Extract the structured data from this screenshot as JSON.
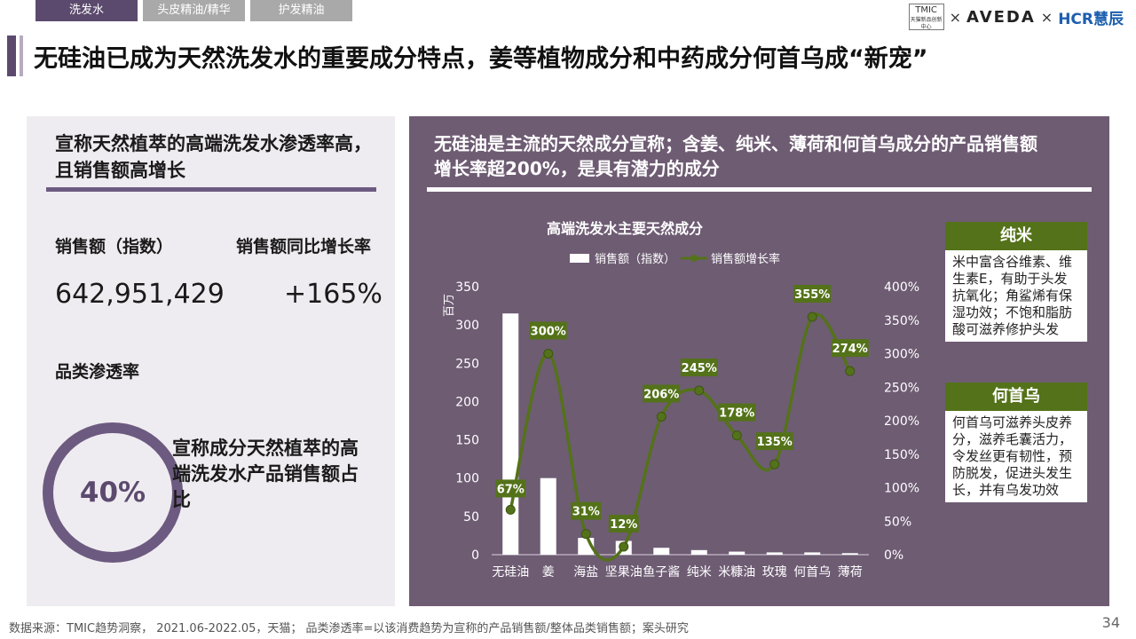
{
  "tabs": [
    {
      "label": "洗发水"
    },
    {
      "label": "头皮精油/精华"
    },
    {
      "label": "护发精油"
    }
  ],
  "logos": {
    "tmic": "TMIC",
    "tmic_sub": "天猫新品创新中心",
    "sep": "×",
    "aveda": "AVEDA",
    "hcr": "HCR慧辰"
  },
  "title": "无硅油已成为天然洗发水的重要成分特点，姜等植物成分和中药成分何首乌成“新宠”",
  "left": {
    "heading": "宣称天然植萃的高端洗发水渗透率高，且销售额高增长",
    "sales_label": "销售额（指数）",
    "growth_label": "销售额同比增长率",
    "sales_value": "642,951,429",
    "growth_value": "+165%",
    "penetration_label": "品类渗透率",
    "penetration_value": "40%",
    "penetration_desc": "宣称成分天然植萃的高端洗发水产品销售额占比"
  },
  "right": {
    "heading": "无硅油是主流的天然成分宣称；含姜、纯米、薄荷和何首乌成分的产品销售额增长率超200%，是具有潜力的成分",
    "notes": [
      {
        "title": "纯米",
        "body": "米中富含谷维素、维生素E，有助于头发抗氧化；角鲨烯有保湿功效；不饱和脂肪酸可滋养修护头发"
      },
      {
        "title": "何首乌",
        "body": "何首乌可滋养头皮养分，滋养毛囊活力，令发丝更有韧性，预防脱发，促进头发生长，并有乌发功效"
      }
    ]
  },
  "chart_data": {
    "type": "bar",
    "title": "高端洗发水主要天然成分",
    "ylabel": "百万",
    "categories": [
      "无硅油",
      "姜",
      "海盐",
      "坚果油",
      "鱼子酱",
      "纯米",
      "米糠油",
      "玫瑰",
      "何首乌",
      "薄荷"
    ],
    "series": [
      {
        "name": "销售额（指数）",
        "type": "bar",
        "axis": "left",
        "values": [
          315,
          100,
          22,
          18,
          9,
          6,
          4,
          3,
          3,
          2
        ]
      },
      {
        "name": "销售额增长率",
        "type": "line",
        "axis": "right",
        "values": [
          67,
          300,
          31,
          12,
          206,
          245,
          178,
          135,
          355,
          274
        ],
        "labels": [
          "67%",
          "300%",
          "31%",
          "12%",
          "206%",
          "245%",
          "178%",
          "135%",
          "355%",
          "274%"
        ]
      }
    ],
    "ylim": [
      0,
      350
    ],
    "y2lim": [
      0,
      400
    ],
    "yticks": [
      0,
      50,
      100,
      150,
      200,
      250,
      300,
      350
    ],
    "y2ticks": [
      "0%",
      "50%",
      "100%",
      "150%",
      "200%",
      "250%",
      "300%",
      "350%",
      "400%"
    ],
    "legend": "top",
    "colors": {
      "bar": "#ffffff",
      "line": "#547219",
      "label_bg": "#547219"
    }
  },
  "footer": "数据来源：TMIC趋势洞察，  2021.06-2022.05，天猫；  品类渗透率=以该消费趋势为宣称的产品销售额/整体品类销售额；案头研究",
  "page_number": "34"
}
